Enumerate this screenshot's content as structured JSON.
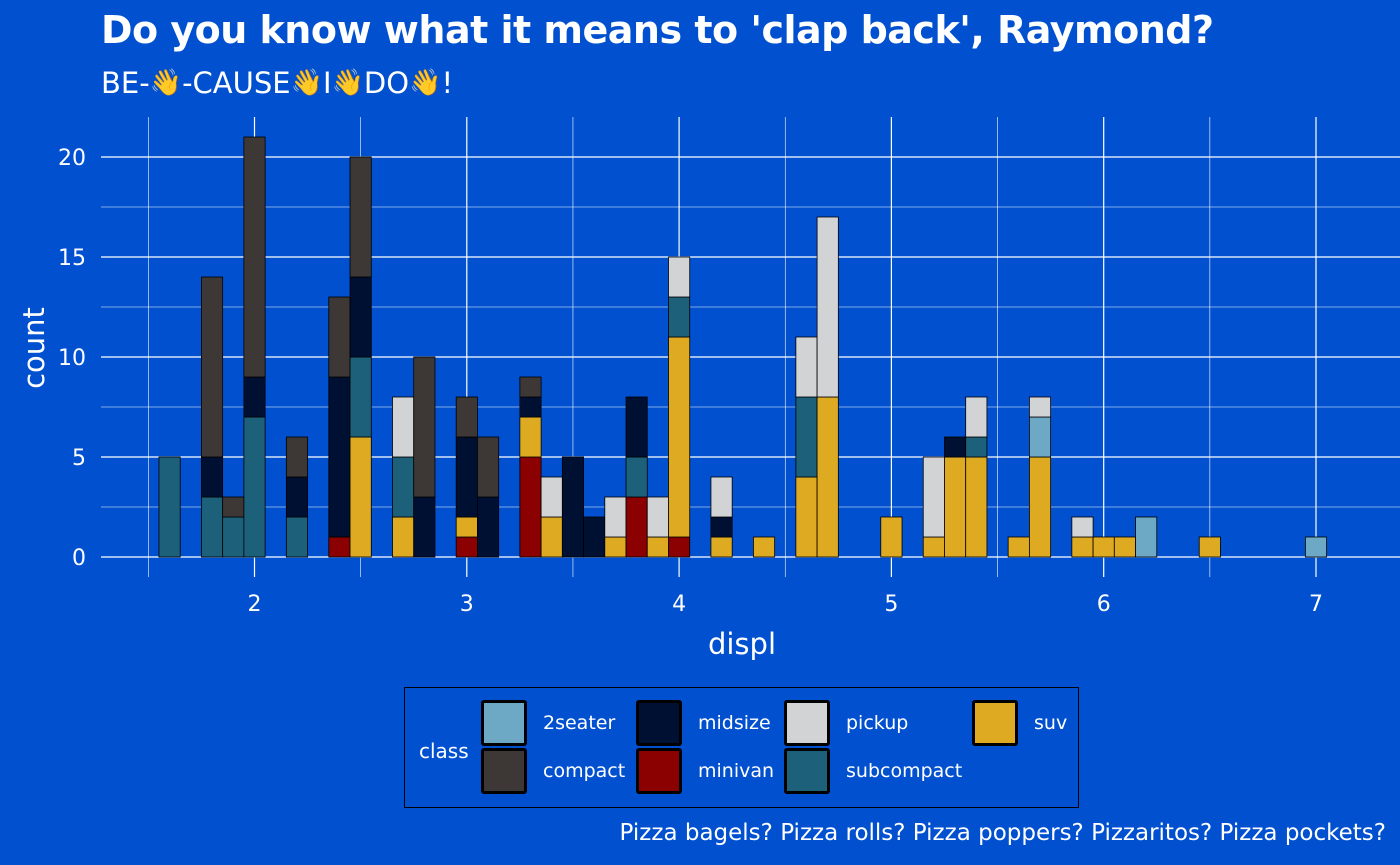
{
  "chart_data": {
    "type": "bar",
    "stacked": true,
    "title": "Do you know what it means to 'clap back', Raymond?",
    "subtitle": {
      "parts": [
        "BE-",
        "-CAUSE",
        "I",
        "DO",
        "!"
      ],
      "icon": "clapping-hand-icon"
    },
    "xlabel": "displ",
    "ylabel": "count",
    "caption": "Pizza bagels? Pizza rolls? Pizza poppers? Pizzaritos? Pizza pockets?",
    "xlim": [
      1.4,
      7.2
    ],
    "ylim": [
      0,
      22
    ],
    "x_ticks": [
      2,
      3,
      4,
      5,
      6,
      7
    ],
    "x_tick_labels": [
      "2",
      "3",
      "4",
      "5",
      "6",
      "7"
    ],
    "y_ticks": [
      0,
      5,
      10,
      15,
      20
    ],
    "y_tick_labels": [
      "0",
      "5",
      "10",
      "15",
      "20"
    ],
    "grid": true,
    "bin_width": 0.1,
    "legend_title": "class",
    "legend_position": "bottom",
    "classes": [
      "2seater",
      "compact",
      "midsize",
      "minivan",
      "pickup",
      "subcompact",
      "suv"
    ],
    "stack_order_bottom_to_top": [
      "minivan",
      "suv",
      "2seater",
      "subcompact",
      "midsize",
      "pickup",
      "compact"
    ],
    "colors": {
      "2seater": "#6DA8C4",
      "compact": "#3D3835",
      "midsize": "#001033",
      "minivan": "#8B0000",
      "pickup": "#D1D3D4",
      "subcompact": "#1C607A",
      "suv": "#DDAA22"
    },
    "bins": [
      {
        "x": 1.6,
        "counts": {
          "subcompact": 5
        }
      },
      {
        "x": 1.8,
        "counts": {
          "subcompact": 3,
          "midsize": 2,
          "compact": 9
        }
      },
      {
        "x": 1.9,
        "counts": {
          "subcompact": 2,
          "compact": 1
        }
      },
      {
        "x": 2.0,
        "counts": {
          "subcompact": 7,
          "midsize": 2,
          "compact": 12
        }
      },
      {
        "x": 2.2,
        "counts": {
          "subcompact": 2,
          "midsize": 2,
          "compact": 2
        }
      },
      {
        "x": 2.4,
        "counts": {
          "minivan": 1,
          "midsize": 8,
          "compact": 4
        }
      },
      {
        "x": 2.5,
        "counts": {
          "suv": 6,
          "subcompact": 4,
          "midsize": 4,
          "compact": 6
        }
      },
      {
        "x": 2.7,
        "counts": {
          "suv": 2,
          "subcompact": 3,
          "pickup": 3
        }
      },
      {
        "x": 2.8,
        "counts": {
          "midsize": 3,
          "compact": 7
        }
      },
      {
        "x": 3.0,
        "counts": {
          "suv": 1,
          "minivan": 1,
          "midsize": 4,
          "compact": 2
        }
      },
      {
        "x": 3.1,
        "counts": {
          "midsize": 3,
          "compact": 3
        }
      },
      {
        "x": 3.3,
        "counts": {
          "suv": 2,
          "minivan": 5,
          "midsize": 1,
          "compact": 1
        }
      },
      {
        "x": 3.4,
        "counts": {
          "suv": 2,
          "pickup": 2
        }
      },
      {
        "x": 3.5,
        "counts": {
          "midsize": 5
        }
      },
      {
        "x": 3.6,
        "counts": {
          "midsize": 2
        }
      },
      {
        "x": 3.7,
        "counts": {
          "suv": 1,
          "pickup": 2
        }
      },
      {
        "x": 3.8,
        "counts": {
          "subcompact": 2,
          "minivan": 3,
          "midsize": 3
        }
      },
      {
        "x": 3.9,
        "counts": {
          "suv": 1,
          "pickup": 2
        }
      },
      {
        "x": 4.0,
        "counts": {
          "suv": 10,
          "subcompact": 2,
          "pickup": 2,
          "minivan": 1
        }
      },
      {
        "x": 4.2,
        "counts": {
          "suv": 1,
          "pickup": 2,
          "midsize": 1
        }
      },
      {
        "x": 4.4,
        "counts": {
          "suv": 1
        }
      },
      {
        "x": 4.6,
        "counts": {
          "suv": 4,
          "subcompact": 4,
          "pickup": 3
        }
      },
      {
        "x": 4.7,
        "counts": {
          "suv": 8,
          "pickup": 9
        }
      },
      {
        "x": 5.0,
        "counts": {
          "suv": 2
        }
      },
      {
        "x": 5.2,
        "counts": {
          "suv": 1,
          "pickup": 4
        }
      },
      {
        "x": 5.3,
        "counts": {
          "suv": 5,
          "midsize": 1
        }
      },
      {
        "x": 5.4,
        "counts": {
          "suv": 5,
          "subcompact": 1,
          "pickup": 2
        }
      },
      {
        "x": 5.6,
        "counts": {
          "suv": 1
        }
      },
      {
        "x": 5.7,
        "counts": {
          "suv": 5,
          "pickup": 1,
          "2seater": 2
        }
      },
      {
        "x": 5.9,
        "counts": {
          "suv": 1,
          "pickup": 1
        }
      },
      {
        "x": 6.0,
        "counts": {
          "suv": 1
        }
      },
      {
        "x": 6.1,
        "counts": {
          "suv": 1
        }
      },
      {
        "x": 6.2,
        "counts": {
          "2seater": 2
        }
      },
      {
        "x": 6.5,
        "counts": {
          "suv": 1
        }
      },
      {
        "x": 7.0,
        "counts": {
          "2seater": 1
        }
      }
    ]
  },
  "legend": {
    "title": "class",
    "items": [
      {
        "label": "2seater",
        "color": "#6DA8C4"
      },
      {
        "label": "compact",
        "color": "#3D3835"
      },
      {
        "label": "midsize",
        "color": "#001033"
      },
      {
        "label": "minivan",
        "color": "#8B0000"
      },
      {
        "label": "pickup",
        "color": "#D1D3D4"
      },
      {
        "label": "subcompact",
        "color": "#1C607A"
      },
      {
        "label": "suv",
        "color": "#DDAA22"
      }
    ]
  },
  "background_color": "#0050D0"
}
